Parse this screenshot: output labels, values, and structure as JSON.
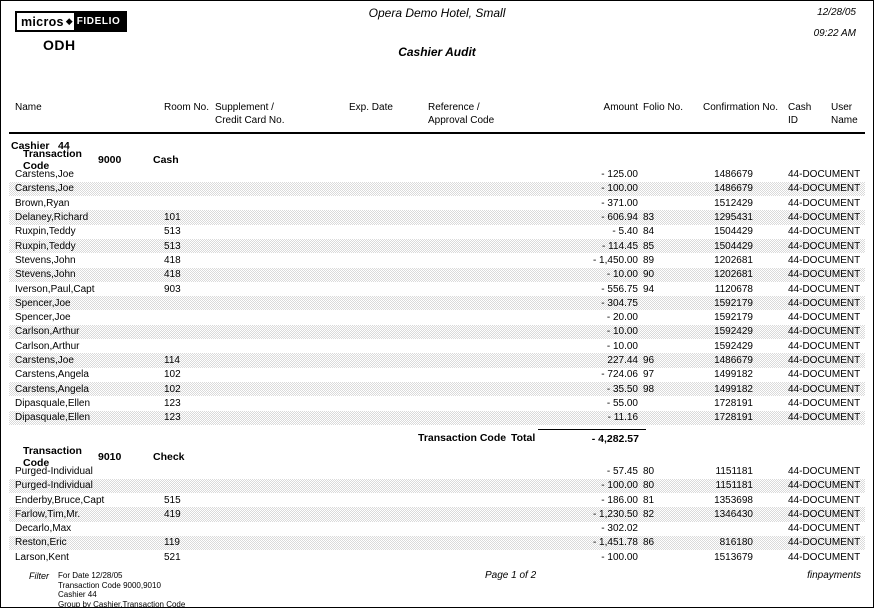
{
  "logo": {
    "brand_left": "micros",
    "brand_right": "FIDELIO",
    "property_code": "ODH"
  },
  "header": {
    "hotel_name": "Opera Demo Hotel, Small",
    "report_title": "Cashier Audit",
    "date": "12/28/05",
    "time": "09:22 AM"
  },
  "columns": {
    "name": "Name",
    "room": "Room No.",
    "supplement_line1": "Supplement /",
    "supplement_line2": "Credit Card No.",
    "exp_date": "Exp. Date",
    "reference_line1": "Reference /",
    "reference_line2": "Approval Code",
    "amount": "Amount",
    "folio": "Folio No.",
    "confirmation": "Confirmation No.",
    "cash_line1": "Cash",
    "cash_line2": "ID",
    "user_line1": "User",
    "user_line2": "Name"
  },
  "cashier": {
    "label": "Cashier",
    "number": "44"
  },
  "sections": [
    {
      "label": "Transaction Code",
      "code": "9000",
      "description": "Cash",
      "rows": [
        {
          "name": "Carstens,Joe",
          "room": "",
          "amount": "- 125.00",
          "folio": "",
          "confirmation": "1486679",
          "user": "44-DOCUMENT"
        },
        {
          "name": "Carstens,Joe",
          "room": "",
          "amount": "- 100.00",
          "folio": "",
          "confirmation": "1486679",
          "user": "44-DOCUMENT"
        },
        {
          "name": "Brown,Ryan",
          "room": "",
          "amount": "- 371.00",
          "folio": "",
          "confirmation": "1512429",
          "user": "44-DOCUMENT"
        },
        {
          "name": "Delaney,Richard",
          "room": "101",
          "amount": "- 606.94",
          "folio": "83",
          "confirmation": "1295431",
          "user": "44-DOCUMENT"
        },
        {
          "name": "Ruxpin,Teddy",
          "room": "513",
          "amount": "- 5.40",
          "folio": "84",
          "confirmation": "1504429",
          "user": "44-DOCUMENT"
        },
        {
          "name": "Ruxpin,Teddy",
          "room": "513",
          "amount": "- 114.45",
          "folio": "85",
          "confirmation": "1504429",
          "user": "44-DOCUMENT"
        },
        {
          "name": "Stevens,John",
          "room": "418",
          "amount": "- 1,450.00",
          "folio": "89",
          "confirmation": "1202681",
          "user": "44-DOCUMENT"
        },
        {
          "name": "Stevens,John",
          "room": "418",
          "amount": "- 10.00",
          "folio": "90",
          "confirmation": "1202681",
          "user": "44-DOCUMENT"
        },
        {
          "name": "Iverson,Paul,Capt",
          "room": "903",
          "amount": "- 556.75",
          "folio": "94",
          "confirmation": "1120678",
          "user": "44-DOCUMENT"
        },
        {
          "name": "Spencer,Joe",
          "room": "",
          "amount": "- 304.75",
          "folio": "",
          "confirmation": "1592179",
          "user": "44-DOCUMENT"
        },
        {
          "name": "Spencer,Joe",
          "room": "",
          "amount": "- 20.00",
          "folio": "",
          "confirmation": "1592179",
          "user": "44-DOCUMENT"
        },
        {
          "name": "Carlson,Arthur",
          "room": "",
          "amount": "- 10.00",
          "folio": "",
          "confirmation": "1592429",
          "user": "44-DOCUMENT"
        },
        {
          "name": "Carlson,Arthur",
          "room": "",
          "amount": "- 10.00",
          "folio": "",
          "confirmation": "1592429",
          "user": "44-DOCUMENT"
        },
        {
          "name": "Carstens,Joe",
          "room": "114",
          "amount": "227.44",
          "folio": "96",
          "confirmation": "1486679",
          "user": "44-DOCUMENT"
        },
        {
          "name": "Carstens,Angela",
          "room": "102",
          "amount": "- 724.06",
          "folio": "97",
          "confirmation": "1499182",
          "user": "44-DOCUMENT"
        },
        {
          "name": "Carstens,Angela",
          "room": "102",
          "amount": "- 35.50",
          "folio": "98",
          "confirmation": "1499182",
          "user": "44-DOCUMENT"
        },
        {
          "name": "Dipasquale,Ellen",
          "room": "123",
          "amount": "- 55.00",
          "folio": "",
          "confirmation": "1728191",
          "user": "44-DOCUMENT"
        },
        {
          "name": "Dipasquale,Ellen",
          "room": "123",
          "amount": "- 11.16",
          "folio": "",
          "confirmation": "1728191",
          "user": "44-DOCUMENT"
        }
      ],
      "total": {
        "label": "Transaction Code",
        "total_label": "Total",
        "amount": "- 4,282.57"
      }
    },
    {
      "label": "Transaction Code",
      "code": "9010",
      "description": "Check",
      "rows": [
        {
          "name": "Purged-Individual",
          "room": "",
          "amount": "- 57.45",
          "folio": "80",
          "confirmation": "1151181",
          "user": "44-DOCUMENT"
        },
        {
          "name": "Purged-Individual",
          "room": "",
          "amount": "- 100.00",
          "folio": "80",
          "confirmation": "1151181",
          "user": "44-DOCUMENT"
        },
        {
          "name": "Enderby,Bruce,Capt",
          "room": "515",
          "amount": "- 186.00",
          "folio": "81",
          "confirmation": "1353698",
          "user": "44-DOCUMENT"
        },
        {
          "name": "Farlow,Tim,Mr.",
          "room": "419",
          "amount": "- 1,230.50",
          "folio": "82",
          "confirmation": "1346430",
          "user": "44-DOCUMENT"
        },
        {
          "name": "Decarlo,Max",
          "room": "",
          "amount": "- 302.02",
          "folio": "",
          "confirmation": "",
          "user": "44-DOCUMENT"
        },
        {
          "name": "Reston,Eric",
          "room": "119",
          "amount": "- 1,451.78",
          "folio": "86",
          "confirmation": "816180",
          "user": "44-DOCUMENT"
        },
        {
          "name": "Larson,Kent",
          "room": "521",
          "amount": "- 100.00",
          "folio": "",
          "confirmation": "1513679",
          "user": "44-DOCUMENT"
        }
      ]
    }
  ],
  "footer": {
    "filter_label": "Filter",
    "filter_lines": [
      "For Date 12/28/05",
      "Transaction Code 9000,9010",
      "Cashier 44",
      "Group by Cashier,Transaction Code"
    ],
    "page_text": "Page 1 of 2",
    "report_code": "finpayments"
  }
}
